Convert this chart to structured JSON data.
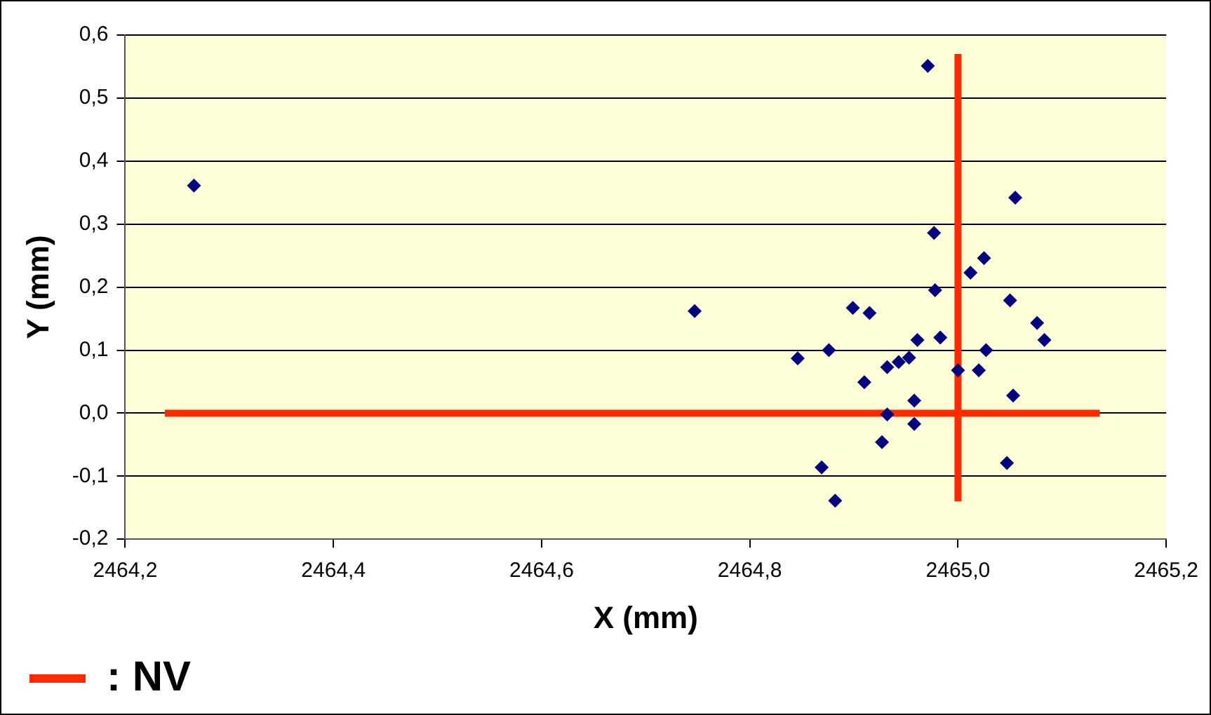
{
  "chart_data": {
    "type": "scatter",
    "xlabel": "X (mm)",
    "ylabel": "Y (mm)",
    "xlim": [
      2464.2,
      2465.2
    ],
    "ylim": [
      -0.2,
      0.6
    ],
    "xticks": [
      {
        "value": 2464.2,
        "label": "2464,2"
      },
      {
        "value": 2464.4,
        "label": "2464,4"
      },
      {
        "value": 2464.6,
        "label": "2464,6"
      },
      {
        "value": 2464.8,
        "label": "2464,8"
      },
      {
        "value": 2465.0,
        "label": "2465,0"
      },
      {
        "value": 2465.2,
        "label": "2465,2"
      }
    ],
    "yticks": [
      {
        "value": -0.2,
        "label": "-0,2"
      },
      {
        "value": -0.1,
        "label": "-0,1"
      },
      {
        "value": 0,
        "label": "0,0"
      },
      {
        "value": 0.1,
        "label": "0,1"
      },
      {
        "value": 0.2,
        "label": "0,2"
      },
      {
        "value": 0.3,
        "label": "0,3"
      },
      {
        "value": 0.4,
        "label": "0,4"
      },
      {
        "value": 0.5,
        "label": "0,5"
      },
      {
        "value": 0.6,
        "label": "0,6"
      }
    ],
    "grid": "y",
    "legend": "bottom left",
    "series": [
      {
        "marker": "diamond",
        "color": "#000080",
        "x": [
          2464.266,
          2464.747,
          2464.971,
          2465.055,
          2464.977,
          2465.025,
          2465.012,
          2464.978,
          2465.05,
          2464.899,
          2464.915,
          2465.076,
          2465.083,
          2464.961,
          2464.983,
          2464.846,
          2464.876,
          2465.027,
          2464.953,
          2464.943,
          2464.932,
          2465.0,
          2465.02,
          2464.91,
          2465.053,
          2464.958,
          2464.932,
          2464.958,
          2464.927,
          2464.869,
          2465.047,
          2464.882
        ],
        "values": [
          0.361,
          0.162,
          0.551,
          0.342,
          0.286,
          0.246,
          0.223,
          0.195,
          0.179,
          0.167,
          0.159,
          0.143,
          0.116,
          0.116,
          0.12,
          0.087,
          0.1,
          0.1,
          0.088,
          0.081,
          0.073,
          0.068,
          0.068,
          0.049,
          0.028,
          0.02,
          -0.002,
          -0.017,
          -0.046,
          -0.086,
          -0.079,
          -0.139
        ]
      },
      {
        "type": "line",
        "name": ": NV",
        "color": "#ff2a00",
        "x": [
          2464.238,
          2465.136
        ],
        "values": [
          0,
          0
        ]
      },
      {
        "type": "line",
        "color": "#ff2a00",
        "x": [
          2465.0,
          2465.0
        ],
        "values": [
          -0.14,
          0.57
        ]
      }
    ]
  }
}
